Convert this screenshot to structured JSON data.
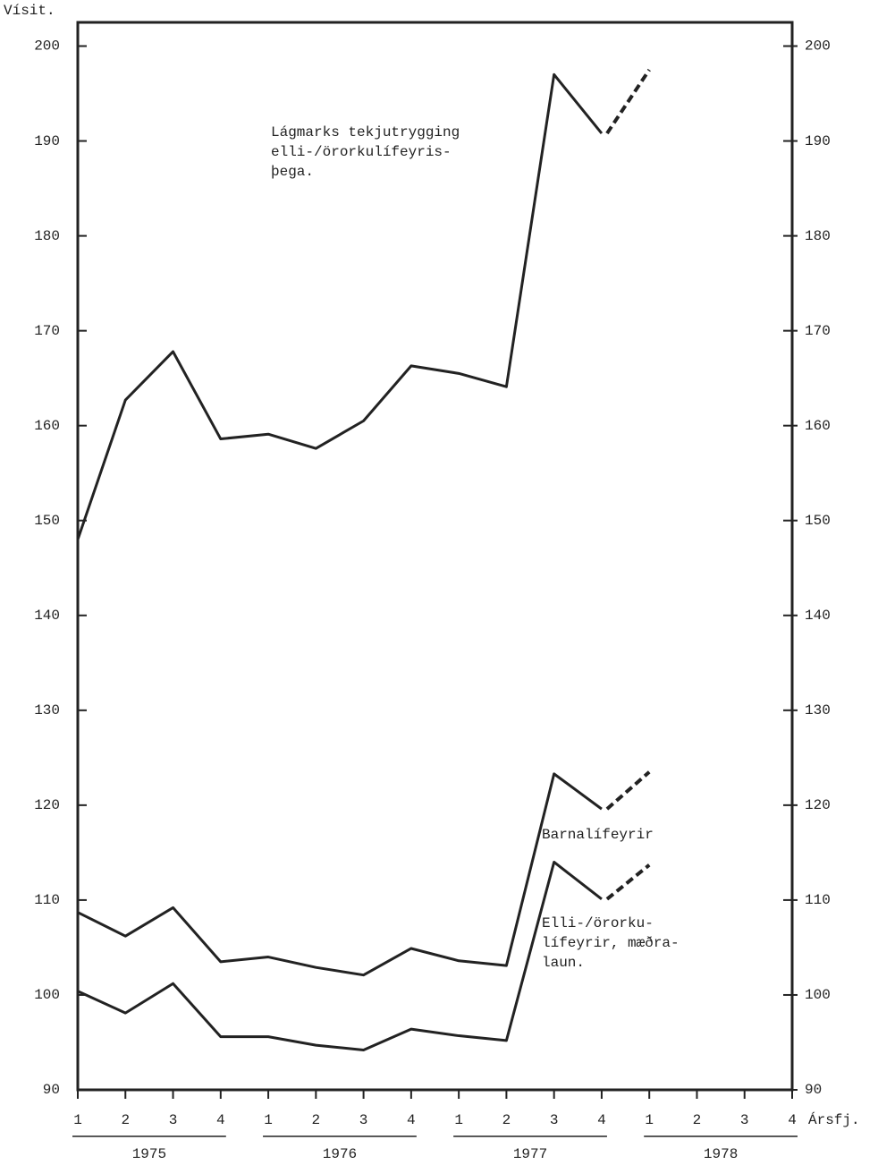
{
  "chart_data": {
    "type": "line",
    "y_axis_label": "Vísit.",
    "x_axis_label": "Ársfj.",
    "categories": [
      "1",
      "2",
      "3",
      "4",
      "1",
      "2",
      "3",
      "4",
      "1",
      "2",
      "3",
      "4",
      "1",
      "2",
      "3",
      "4"
    ],
    "years": [
      "1975",
      "1976",
      "1977",
      "1978"
    ],
    "ylim": [
      90,
      202.5
    ],
    "yticks": [
      90,
      100,
      110,
      120,
      130,
      140,
      150,
      160,
      170,
      180,
      190,
      200
    ],
    "right_axis_ticks": true,
    "series": [
      {
        "label_lines": [
          "Lágmarks tekjutrygging",
          "elli-/örorkulífeyris-",
          "þega."
        ],
        "color": "#222",
        "values": [
          148,
          162.7,
          167.8,
          158.6,
          159.1,
          157.6,
          160.5,
          166.3,
          165.5,
          164.1,
          197,
          190.8,
          null,
          null,
          null,
          null
        ],
        "projection": [
          null,
          null,
          null,
          null,
          null,
          null,
          null,
          null,
          null,
          null,
          null,
          null,
          197.5,
          null,
          null,
          null
        ]
      },
      {
        "label_lines": [
          "Barnalífeyrir"
        ],
        "color": "#222",
        "values": [
          108.7,
          106.2,
          109.2,
          103.5,
          104,
          102.9,
          102.1,
          104.9,
          103.6,
          103.1,
          123.3,
          119.6,
          null,
          null,
          null,
          null
        ],
        "projection": [
          null,
          null,
          null,
          null,
          null,
          null,
          null,
          null,
          null,
          null,
          null,
          null,
          123.5,
          null,
          null,
          null
        ]
      },
      {
        "label_lines": [
          "Elli-/örorku-",
          "lífeyrir, mæðra-",
          "laun."
        ],
        "color": "#222",
        "values": [
          100.4,
          98.1,
          101.2,
          95.6,
          95.6,
          94.7,
          94.2,
          96.4,
          95.7,
          95.2,
          114,
          110.1,
          null,
          null,
          null,
          null
        ],
        "projection": [
          null,
          null,
          null,
          null,
          null,
          null,
          null,
          null,
          null,
          null,
          null,
          null,
          113.7,
          null,
          null,
          null
        ]
      }
    ]
  }
}
